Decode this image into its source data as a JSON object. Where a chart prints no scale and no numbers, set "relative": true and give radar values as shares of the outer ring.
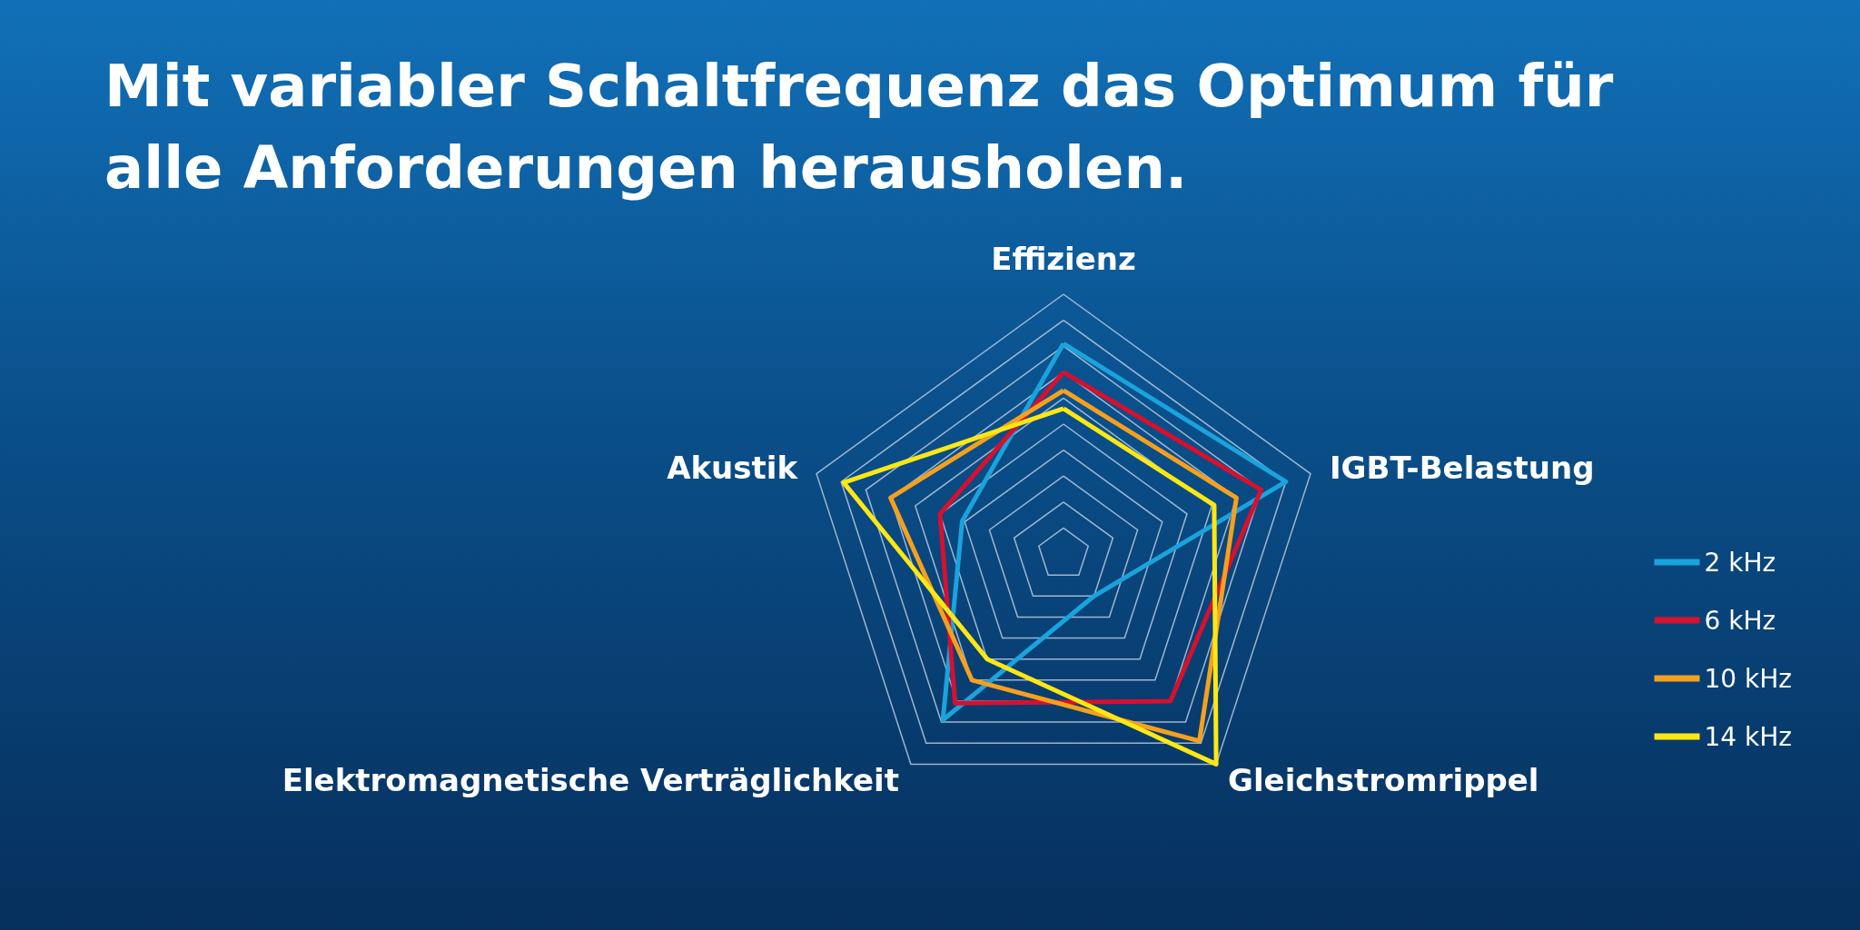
{
  "chart_data": {
    "type": "radar",
    "title": "Mit variabler Schaltfrequenz das Optimum für alle Anforderungen herausholen.",
    "categories": [
      "Effizienz",
      "IGBT-Belastung",
      "Gleichstromrippel",
      "Elektromagnetische Verträglichkeit",
      "Akustik"
    ],
    "relative": true,
    "grid": true,
    "legend": "right",
    "marker": "none",
    "series": [
      {
        "name": "2 kHz",
        "color": "#1aa3dc",
        "values": [
          0.81,
          0.9,
          0.2,
          0.79,
          0.41
        ]
      },
      {
        "name": "6 kHz",
        "color": "#d7102e",
        "values": [
          0.7,
          0.8,
          0.7,
          0.71,
          0.5
        ]
      },
      {
        "name": "10 kHz",
        "color": "#f5a01e",
        "values": [
          0.63,
          0.7,
          0.89,
          0.6,
          0.7
        ]
      },
      {
        "name": "14 kHz",
        "color": "#ffe714",
        "values": [
          0.56,
          0.61,
          1,
          0.5,
          0.89
        ]
      }
    ]
  }
}
